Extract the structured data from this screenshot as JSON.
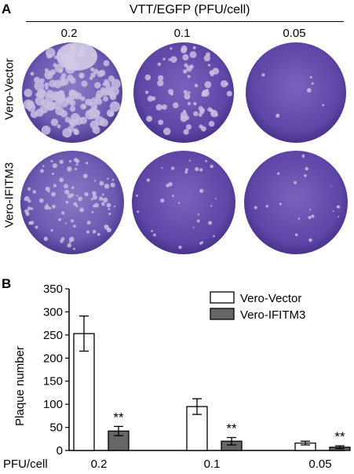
{
  "panel_a": {
    "letter": "A",
    "header": "VTT/EGFP (PFU/cell)",
    "doses": [
      "0.2",
      "0.1",
      "0.05"
    ],
    "rows": [
      "Vero-Vector",
      "Vero-IFITM3"
    ]
  },
  "panel_b": {
    "letter": "B",
    "ylabel": "Plaque number",
    "xlabel": "PFU/cell",
    "significance": "**"
  },
  "colors": {
    "plate_dark": "#5a3fa0",
    "plate_mid": "#6f57b3",
    "plaque": "#c9bde0",
    "vector_bar": "#ffffff",
    "ifitm3_bar": "#666666"
  },
  "chart_data": {
    "type": "bar",
    "categories": [
      "0.2",
      "0.1",
      "0.05"
    ],
    "series": [
      {
        "name": "Vero-Vector",
        "values": [
          253,
          95,
          16
        ],
        "errors": [
          38,
          17,
          4
        ]
      },
      {
        "name": "Vero-IFITM3",
        "values": [
          42,
          20,
          7
        ],
        "errors": [
          10,
          8,
          3
        ]
      }
    ],
    "significance": [
      "**",
      "**",
      "**"
    ],
    "ylim": [
      0,
      350
    ],
    "yticks": [
      0,
      50,
      100,
      150,
      200,
      250,
      300,
      350
    ],
    "ylabel": "Plaque number",
    "xlabel": "PFU/cell",
    "legend_position": "top-right"
  }
}
